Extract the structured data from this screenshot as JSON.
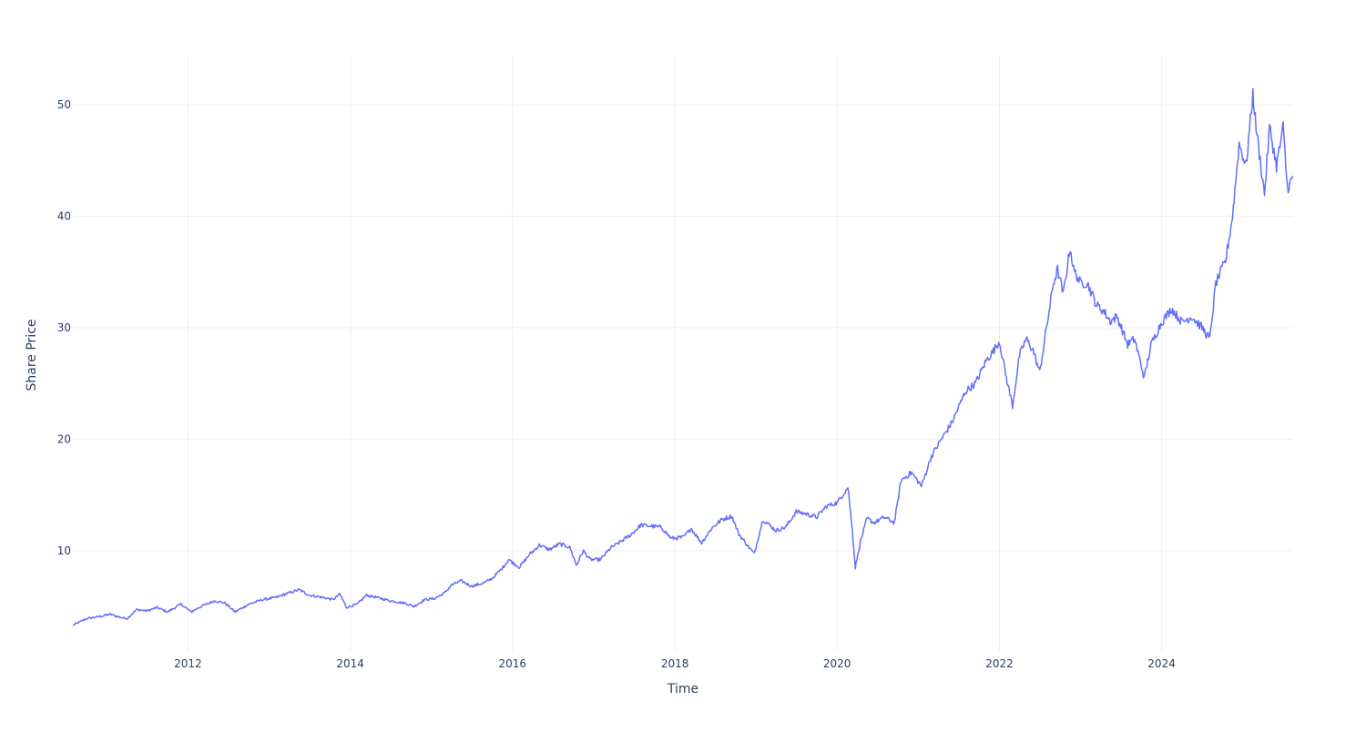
{
  "chart_data": {
    "type": "line",
    "title": "",
    "xlabel": "Time",
    "ylabel": "Share Price",
    "x_range": [
      "2010-08-01",
      "2025-08-15"
    ],
    "ylim": [
      1,
      54.5
    ],
    "x_tick_labels": [
      "2012",
      "2014",
      "2016",
      "2018",
      "2020",
      "2022",
      "2024"
    ],
    "x_tick_dates": [
      "2012-01-01",
      "2014-01-01",
      "2016-01-01",
      "2018-01-01",
      "2020-01-01",
      "2022-01-01",
      "2024-01-01"
    ],
    "y_ticks": [
      10,
      20,
      30,
      40,
      50
    ],
    "grid": true,
    "legend": "none",
    "line_color": "#636efa",
    "series": [
      {
        "x": [
          "2010-08-01",
          "2010-10-01",
          "2010-12-01",
          "2011-01-15",
          "2011-02-15",
          "2011-04-01",
          "2011-05-15",
          "2011-07-01",
          "2011-08-15",
          "2011-10-01",
          "2011-12-01",
          "2012-01-15",
          "2012-03-01",
          "2012-05-01",
          "2012-06-15",
          "2012-08-01",
          "2012-10-01",
          "2012-12-01",
          "2013-02-01",
          "2013-03-15",
          "2013-05-15",
          "2013-07-01",
          "2013-09-01",
          "2013-10-15",
          "2013-11-15",
          "2013-12-15",
          "2014-02-01",
          "2014-03-15",
          "2014-05-01",
          "2014-07-01",
          "2014-09-01",
          "2014-10-15",
          "2014-12-01",
          "2015-01-15",
          "2015-03-01",
          "2015-04-01",
          "2015-05-15",
          "2015-07-01",
          "2015-08-25",
          "2015-10-01",
          "2015-11-15",
          "2015-12-15",
          "2016-02-01",
          "2016-03-15",
          "2016-05-01",
          "2016-06-15",
          "2016-08-01",
          "2016-09-15",
          "2016-10-15",
          "2016-11-15",
          "2016-12-15",
          "2017-02-01",
          "2017-03-15",
          "2017-05-01",
          "2017-06-15",
          "2017-08-01",
          "2017-09-15",
          "2017-11-01",
          "2017-12-15",
          "2018-02-08",
          "2018-03-15",
          "2018-05-01",
          "2018-06-15",
          "2018-08-01",
          "2018-09-15",
          "2018-10-15",
          "2018-12-24",
          "2019-02-01",
          "2019-04-01",
          "2019-05-15",
          "2019-07-01",
          "2019-08-15",
          "2019-10-01",
          "2019-11-15",
          "2020-01-02",
          "2020-02-19",
          "2020-03-09",
          "2020-03-23",
          "2020-04-15",
          "2020-05-15",
          "2020-06-15",
          "2020-08-01",
          "2020-09-15",
          "2020-10-15",
          "2020-12-01",
          "2021-01-15",
          "2021-03-01",
          "2021-04-15",
          "2021-06-01",
          "2021-07-15",
          "2021-08-01",
          "2021-09-15",
          "2021-11-01",
          "2021-12-01",
          "2022-01-01",
          "2022-02-01",
          "2022-03-01",
          "2022-04-01",
          "2022-05-01",
          "2022-06-01",
          "2022-07-01",
          "2022-08-01",
          "2022-09-01",
          "2022-09-20",
          "2022-10-15",
          "2022-11-15",
          "2022-12-01",
          "2023-01-01",
          "2023-02-01",
          "2023-03-15",
          "2023-04-15",
          "2023-05-15",
          "2023-06-15",
          "2023-08-01",
          "2023-09-01",
          "2023-10-15",
          "2023-11-15",
          "2024-01-01",
          "2024-02-15",
          "2024-04-01",
          "2024-05-15",
          "2024-07-01",
          "2024-08-05",
          "2024-09-01",
          "2024-10-15",
          "2024-11-15",
          "2024-12-15",
          "2025-01-15",
          "2025-02-15",
          "2025-03-01",
          "2025-04-08",
          "2025-05-01",
          "2025-06-01",
          "2025-07-01",
          "2025-07-20",
          "2025-08-15"
        ],
        "values": [
          3.3,
          3.9,
          4.1,
          4.3,
          4.1,
          3.9,
          4.7,
          4.6,
          4.9,
          4.5,
          5.2,
          4.5,
          5.0,
          5.5,
          5.3,
          4.5,
          5.2,
          5.6,
          5.8,
          6.1,
          6.5,
          6.0,
          5.8,
          5.6,
          6.1,
          4.9,
          5.2,
          6.0,
          5.8,
          5.5,
          5.3,
          5.0,
          5.6,
          5.7,
          6.2,
          6.9,
          7.3,
          6.8,
          7.1,
          7.5,
          8.4,
          9.2,
          8.5,
          9.6,
          10.5,
          10.1,
          10.6,
          10.3,
          8.7,
          10.0,
          9.2,
          9.2,
          10.2,
          10.8,
          11.4,
          12.3,
          12.2,
          12.1,
          11.1,
          11.2,
          12.0,
          10.7,
          12.0,
          12.8,
          13.1,
          11.5,
          9.7,
          12.8,
          11.8,
          12.1,
          13.5,
          13.3,
          13.0,
          14.0,
          14.3,
          15.7,
          12.0,
          8.5,
          10.8,
          12.9,
          12.5,
          13.0,
          12.5,
          16.3,
          17.0,
          15.8,
          18.5,
          20.0,
          21.5,
          23.5,
          24.3,
          25.0,
          27.0,
          27.8,
          28.8,
          25.5,
          23.0,
          27.5,
          29.0,
          28.0,
          26.0,
          30.0,
          34.0,
          35.2,
          33.0,
          37.2,
          35.2,
          34.0,
          34.0,
          32.0,
          31.5,
          30.6,
          31.0,
          28.5,
          29.0,
          25.5,
          28.5,
          30.5,
          31.7,
          30.5,
          31.0,
          30.0,
          29.0,
          34.0,
          36.0,
          40.0,
          46.5,
          44.5,
          51.0,
          48.0,
          42.0,
          48.0,
          44.5,
          48.0,
          42.5,
          43.5
        ]
      }
    ]
  }
}
